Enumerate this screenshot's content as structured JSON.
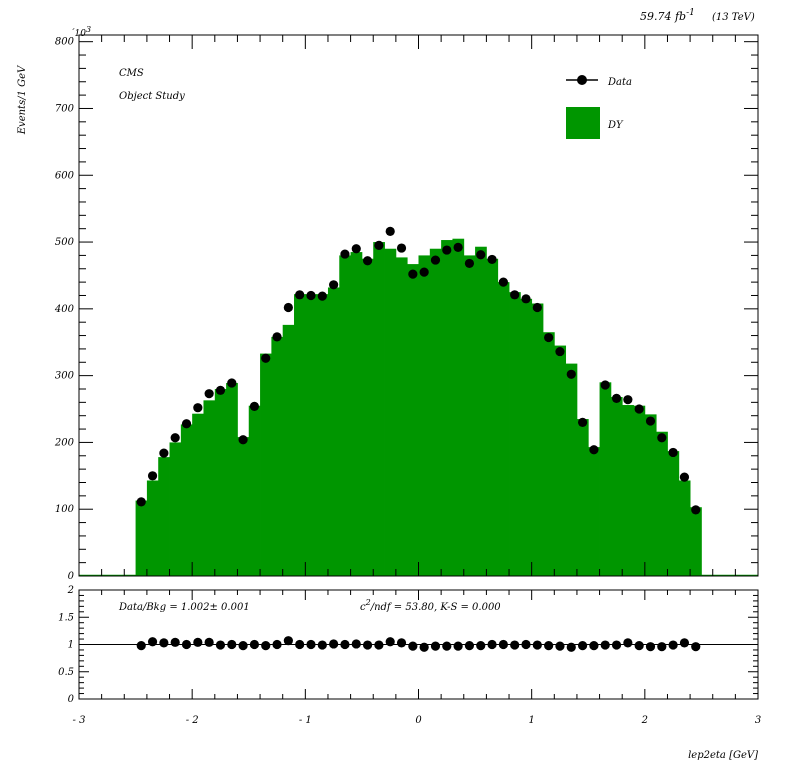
{
  "header": {
    "lumi": "59.74 fb",
    "lumi_exp": "-1",
    "energy": "(13 TeV)"
  },
  "chart_data": [
    {
      "type": "bar",
      "title": "",
      "labels": {
        "experiment": "CMS",
        "study": "Object Study"
      },
      "ylabel": "Events/1 GeV",
      "yscale_label": "10",
      "yscale_exp": "3",
      "xlabel": "lep2eta [GeV]",
      "xlim": [
        -3,
        3
      ],
      "ylim": [
        0,
        810
      ],
      "y_ticks": [
        0,
        100,
        200,
        300,
        400,
        500,
        600,
        700,
        800
      ],
      "x_ticks": [
        -3,
        -2,
        -1,
        0,
        1,
        2,
        3
      ],
      "bin_width": 0.1,
      "x": [
        -2.45,
        -2.35,
        -2.25,
        -2.15,
        -2.05,
        -1.95,
        -1.85,
        -1.75,
        -1.65,
        -1.55,
        -1.45,
        -1.35,
        -1.25,
        -1.15,
        -1.05,
        -0.95,
        -0.85,
        -0.75,
        -0.65,
        -0.55,
        -0.45,
        -0.35,
        -0.25,
        -0.15,
        -0.05,
        0.05,
        0.15,
        0.25,
        0.35,
        0.45,
        0.55,
        0.65,
        0.75,
        0.85,
        0.95,
        1.05,
        1.15,
        1.25,
        1.35,
        1.45,
        1.55,
        1.65,
        1.75,
        1.85,
        1.95,
        2.05,
        2.15,
        2.25,
        2.35,
        2.45
      ],
      "series": [
        {
          "name": "DY",
          "color": "#009600",
          "style": "filled-histogram",
          "values": [
            113,
            143,
            178,
            200,
            227,
            243,
            263,
            280,
            289,
            208,
            255,
            333,
            358,
            376,
            422,
            422,
            422,
            432,
            480,
            485,
            475,
            500,
            490,
            477,
            467,
            480,
            490,
            503,
            505,
            480,
            493,
            475,
            440,
            425,
            415,
            408,
            365,
            345,
            318,
            235,
            193,
            290,
            268,
            256,
            255,
            242,
            216,
            187,
            143,
            103
          ]
        },
        {
          "name": "Data",
          "color": "#000000",
          "style": "points",
          "values": [
            111,
            150,
            184,
            207,
            228,
            252,
            273,
            278,
            289,
            204,
            254,
            326,
            358,
            402,
            421,
            420,
            419,
            436,
            482,
            490,
            472,
            495,
            516,
            491,
            452,
            455,
            473,
            488,
            492,
            468,
            481,
            474,
            440,
            421,
            415,
            402,
            357,
            336,
            302,
            230,
            189,
            286,
            266,
            264,
            250,
            232,
            207,
            185,
            148,
            99
          ]
        }
      ],
      "legend": {
        "placement": "top-right",
        "entries": [
          "Data",
          "DY"
        ]
      }
    },
    {
      "type": "scatter",
      "ylim": [
        0,
        2
      ],
      "y_ticks": [
        0,
        0.5,
        1,
        1.5,
        2
      ],
      "y_tick_labels": [
        "0",
        "0.5",
        "1",
        "1.5",
        "2"
      ],
      "reference_line": 1,
      "annotations": {
        "ratio": "Data/Bkg = 1.002± 0.001",
        "chi2_symbol": "c",
        "chi2_exp": "2",
        "chi2_rest": "/ndf = 53.80,    K-S = 0.000"
      },
      "series": [
        {
          "name": "",
          "values": [
            0.98,
            1.05,
            1.03,
            1.04,
            1.0,
            1.04,
            1.04,
            0.99,
            1.0,
            0.98,
            1.0,
            0.98,
            1.0,
            1.07,
            1.0,
            1.0,
            0.99,
            1.01,
            1.0,
            1.01,
            0.99,
            0.99,
            1.05,
            1.03,
            0.97,
            0.95,
            0.97,
            0.97,
            0.97,
            0.98,
            0.98,
            1.0,
            1.0,
            0.99,
            1.0,
            0.99,
            0.98,
            0.97,
            0.95,
            0.98,
            0.98,
            0.99,
            0.99,
            1.03,
            0.98,
            0.96,
            0.96,
            0.99,
            1.03,
            0.96
          ]
        }
      ]
    }
  ]
}
